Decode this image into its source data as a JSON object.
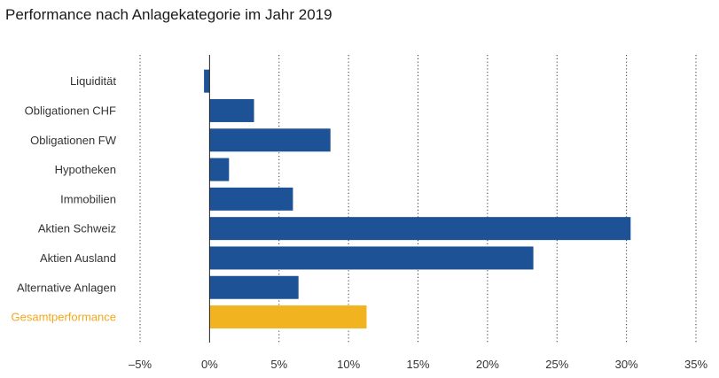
{
  "chart_data": {
    "type": "bar",
    "orientation": "horizontal",
    "title": "Performance nach Anlagekategorie im Jahr 2019",
    "xlabel": "",
    "ylabel": "",
    "categories": [
      "Liquidität",
      "Obligationen CHF",
      "Obligationen FW",
      "Hypotheken",
      "Immobilien",
      "Aktien Schweiz",
      "Aktien Ausland",
      "Alternative Anlagen",
      "Gesamtperformance"
    ],
    "values": [
      -0.4,
      3.2,
      8.7,
      1.4,
      6.0,
      30.3,
      23.3,
      6.4,
      11.3
    ],
    "highlight_category": "Gesamtperformance",
    "xlim": [
      -5,
      35
    ],
    "xticks": [
      -5,
      0,
      5,
      10,
      15,
      20,
      25,
      30,
      35
    ],
    "xtick_labels": [
      "–5%",
      "0%",
      "5%",
      "10%",
      "15%",
      "20%",
      "25%",
      "30%",
      "35%"
    ],
    "grid": "vertical-dotted",
    "legend": "none",
    "colors": {
      "bar": "#1e5296",
      "highlight_bar": "#f2b320",
      "highlight_label": "#f2a81d",
      "label": "#333333",
      "grid": "#333333",
      "zero_line": "#222222"
    }
  }
}
